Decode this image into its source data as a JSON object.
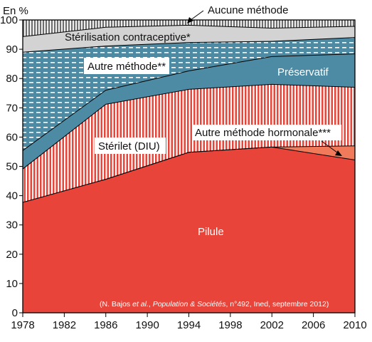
{
  "chart_data": {
    "type": "area",
    "stacked": true,
    "x": [
      1978,
      1986,
      1994,
      2002,
      2010
    ],
    "xlim": [
      1978,
      2010
    ],
    "ylim": [
      0,
      100
    ],
    "y_unit_label": "En %",
    "x_ticks": [
      "1978",
      "1982",
      "1986",
      "1990",
      "1994",
      "1998",
      "2002",
      "2006",
      "2010"
    ],
    "y_ticks": [
      "0",
      "10",
      "20",
      "30",
      "40",
      "50",
      "60",
      "70",
      "80",
      "90",
      "100"
    ],
    "grid": false,
    "legend": "inline labels",
    "series": [
      {
        "name": "Pilule",
        "color": "#e8443a",
        "values": [
          37.7,
          45.6,
          54.8,
          56.6,
          52.2
        ]
      },
      {
        "name": "Autre méthode hormonale***",
        "color": "#f07a5a",
        "values": [
          0,
          0,
          0,
          0,
          4.8
        ]
      },
      {
        "name": "Stérilet (DIU)",
        "color": "#e8443a",
        "pattern": "vertical-stripes",
        "values": [
          11.4,
          25.6,
          21.5,
          21.4,
          20
        ]
      },
      {
        "name": "Préservatif",
        "color": "#4d8aa3",
        "values": [
          6.3,
          4.8,
          6.3,
          9.5,
          11.4
        ]
      },
      {
        "name": "Autre méthode**",
        "color": "#4d8aa3",
        "pattern": "dashes",
        "values": [
          33.6,
          15.1,
          9.7,
          5.2,
          5.6
        ]
      },
      {
        "name": "Stérilisation contraceptive*",
        "color": "#d3d3d3",
        "values": [
          5.3,
          6.4,
          5.9,
          4.5,
          3.8
        ]
      },
      {
        "name": "Aucune méthode",
        "color": "#9a9a9a",
        "pattern": "vertical-stripes",
        "values": [
          5.7,
          2.5,
          1.8,
          2.8,
          2.2
        ]
      }
    ],
    "annotations": {
      "pilule": "Pilule",
      "sterilet": "Stérilet (DIU)",
      "preservatif": "Préservatif",
      "autre_methode": "Autre méthode**",
      "sterilisation": "Stérilisation contraceptive*",
      "aucune": "Aucune méthode",
      "hormonale": "Autre méthode hormonale***"
    },
    "source": {
      "before": "(N. Bajos ",
      "italic1": "et al.",
      "mid": ", ",
      "italic2": "Population & Sociétés",
      "after": ", n°492, Ined, septembre 2012)"
    }
  }
}
